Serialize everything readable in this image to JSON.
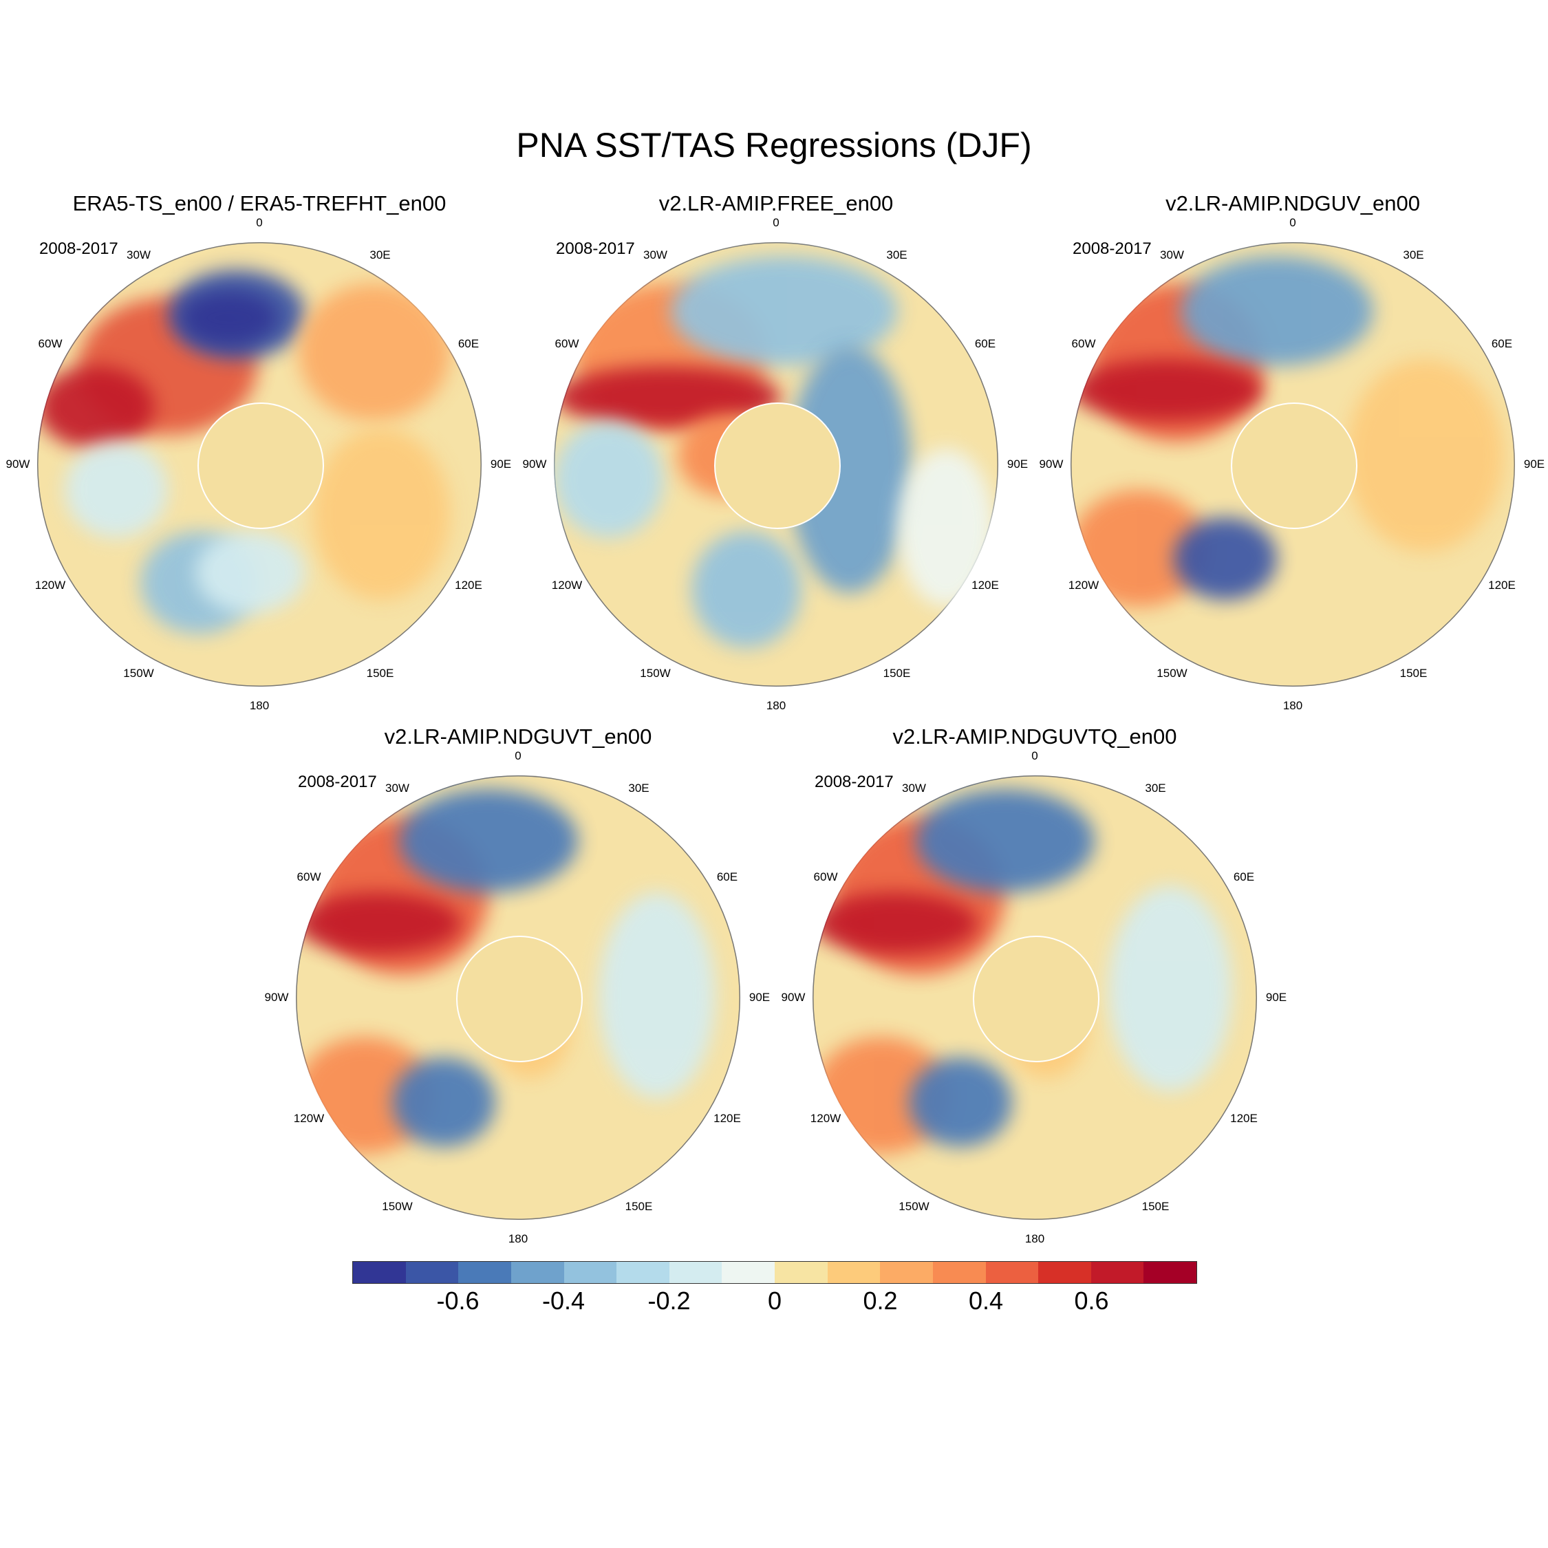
{
  "title": "PNA SST/TAS Regressions (DJF)",
  "panels": [
    {
      "title": "ERA5-TS_en00 / ERA5-TREFHT_en00",
      "period": "2008-2017"
    },
    {
      "title": "v2.LR-AMIP.FREE_en00",
      "period": "2008-2017"
    },
    {
      "title": "v2.LR-AMIP.NDGUV_en00",
      "period": "2008-2017"
    },
    {
      "title": "v2.LR-AMIP.NDGUVT_en00",
      "period": "2008-2017"
    },
    {
      "title": "v2.LR-AMIP.NDGUVTQ_en00",
      "period": "2008-2017"
    }
  ],
  "longitude_labels": [
    "180",
    "150E",
    "120E",
    "90E",
    "60E",
    "30E",
    "0",
    "30W",
    "60W",
    "90W",
    "120W",
    "150W"
  ],
  "colorbar": {
    "colors": [
      "#313695",
      "#3b56a6",
      "#4a7ab8",
      "#6fa2cc",
      "#93c2de",
      "#b4dbeb",
      "#d4ecf0",
      "#eef6f2",
      "#f7e4a3",
      "#fdcb7b",
      "#fcab65",
      "#f88b52",
      "#ec6040",
      "#d73027",
      "#c21a29",
      "#a50026"
    ],
    "tick_labels": [
      "-0.6",
      "-0.4",
      "-0.2",
      "0",
      "0.2",
      "0.4",
      "0.6"
    ],
    "tick_values": [
      -0.6,
      -0.4,
      -0.2,
      0,
      0.2,
      0.4,
      0.6
    ],
    "range": [
      -0.8,
      0.8
    ]
  }
}
